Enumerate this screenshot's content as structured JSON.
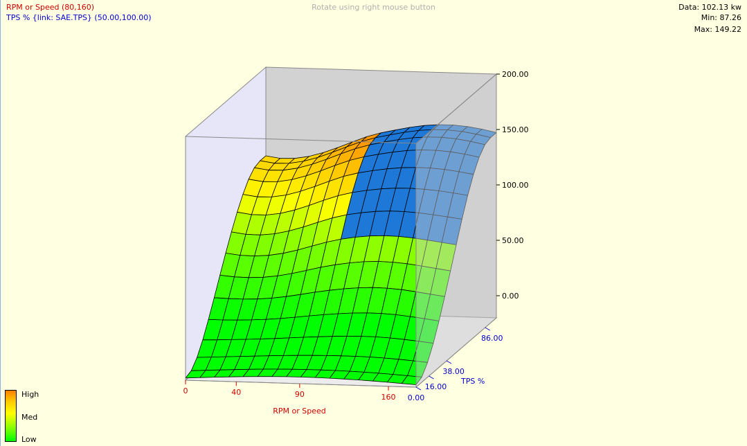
{
  "header": {
    "x_axis_info": "RPM or Speed (80,160)",
    "y_axis_info": "TPS % {link: SAE.TPS} (50.00,100.00)",
    "hint": "Rotate using right mouse button",
    "stats": {
      "data": "Data: 102.13 kw",
      "min": "Min: 87.26",
      "max": "Max: 149.22"
    }
  },
  "legend": {
    "high": "High",
    "med": "Med",
    "low": "Low"
  },
  "colors": {
    "background": "#ffffe1",
    "x_axis": "#d00000",
    "y_axis": "#0000d0",
    "highlight": "#1e78d8",
    "scale": [
      "#00ff00",
      "#99ff00",
      "#ffff00",
      "#ffcc00",
      "#ff7f00"
    ]
  },
  "chart_data": {
    "type": "surface3d",
    "x_axis": {
      "label": "RPM or Speed",
      "ticks": [
        "0",
        "40",
        "90",
        "160"
      ],
      "range": [
        0,
        160
      ]
    },
    "y_axis": {
      "label": "TPS %",
      "ticks": [
        "0.00",
        "16.00",
        "38.00",
        "86.00"
      ],
      "range": [
        0,
        100
      ]
    },
    "z_axis": {
      "ticks": [
        "0.00",
        "50.00",
        "100.00",
        "150.00",
        "200.00"
      ],
      "range": [
        -20,
        200
      ]
    },
    "grid_size": [
      16,
      14
    ],
    "highlight_region": {
      "x_range": [
        80,
        160
      ],
      "y_range": [
        50,
        100
      ]
    },
    "stats": {
      "data": 102.13,
      "min": 87.26,
      "max": 149.22,
      "unit": "kw"
    }
  }
}
